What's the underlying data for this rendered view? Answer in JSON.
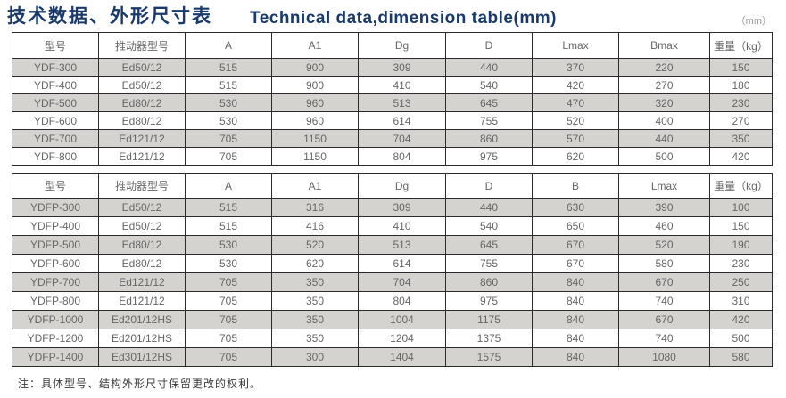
{
  "header": {
    "title_zh": "技术数据、外形尺寸表",
    "title_en": "Technical data,dimension table(mm)",
    "unit_label": "（mm）"
  },
  "table1": {
    "columns": [
      "型号",
      "推动器型号",
      "A",
      "A1",
      "Dg",
      "D",
      "Lmax",
      "Bmax",
      "重量（kg）"
    ],
    "rows": [
      [
        "YDF-300",
        "Ed50/12",
        "515",
        "900",
        "309",
        "440",
        "370",
        "220",
        "150"
      ],
      [
        "YDF-400",
        "Ed50/12",
        "515",
        "900",
        "410",
        "540",
        "420",
        "270",
        "180"
      ],
      [
        "YDF-500",
        "Ed80/12",
        "530",
        "960",
        "513",
        "645",
        "470",
        "320",
        "230"
      ],
      [
        "YDF-600",
        "Ed80/12",
        "530",
        "960",
        "614",
        "755",
        "520",
        "400",
        "270"
      ],
      [
        "YDF-700",
        "Ed121/12",
        "705",
        "1150",
        "704",
        "860",
        "570",
        "440",
        "350"
      ],
      [
        "YDF-800",
        "Ed121/12",
        "705",
        "1150",
        "804",
        "975",
        "620",
        "500",
        "420"
      ]
    ]
  },
  "table2": {
    "columns": [
      "型号",
      "推动器型号",
      "A",
      "A1",
      "Dg",
      "D",
      "B",
      "Lmax",
      "重量（kg）"
    ],
    "rows": [
      [
        "YDFP-300",
        "Ed50/12",
        "515",
        "316",
        "309",
        "440",
        "630",
        "390",
        "100"
      ],
      [
        "YDFP-400",
        "Ed50/12",
        "515",
        "416",
        "410",
        "540",
        "650",
        "460",
        "150"
      ],
      [
        "YDFP-500",
        "Ed80/12",
        "530",
        "520",
        "513",
        "645",
        "670",
        "520",
        "190"
      ],
      [
        "YDFP-600",
        "Ed80/12",
        "530",
        "620",
        "614",
        "755",
        "670",
        "580",
        "230"
      ],
      [
        "YDFP-700",
        "Ed121/12",
        "705",
        "350",
        "704",
        "860",
        "840",
        "670",
        "250"
      ],
      [
        "YDFP-800",
        "Ed121/12",
        "705",
        "350",
        "804",
        "975",
        "840",
        "740",
        "310"
      ],
      [
        "YDFP-1000",
        "Ed201/12HS",
        "705",
        "350",
        "1004",
        "1175",
        "840",
        "670",
        "420"
      ],
      [
        "YDFP-1200",
        "Ed201/12HS",
        "705",
        "350",
        "1204",
        "1375",
        "840",
        "740",
        "500"
      ],
      [
        "YDFP-1400",
        "Ed301/12HS",
        "705",
        "300",
        "1404",
        "1575",
        "840",
        "1080",
        "580"
      ]
    ]
  },
  "footer": {
    "note": "注：具体型号、结构外形尺寸保留更改的权利。"
  }
}
